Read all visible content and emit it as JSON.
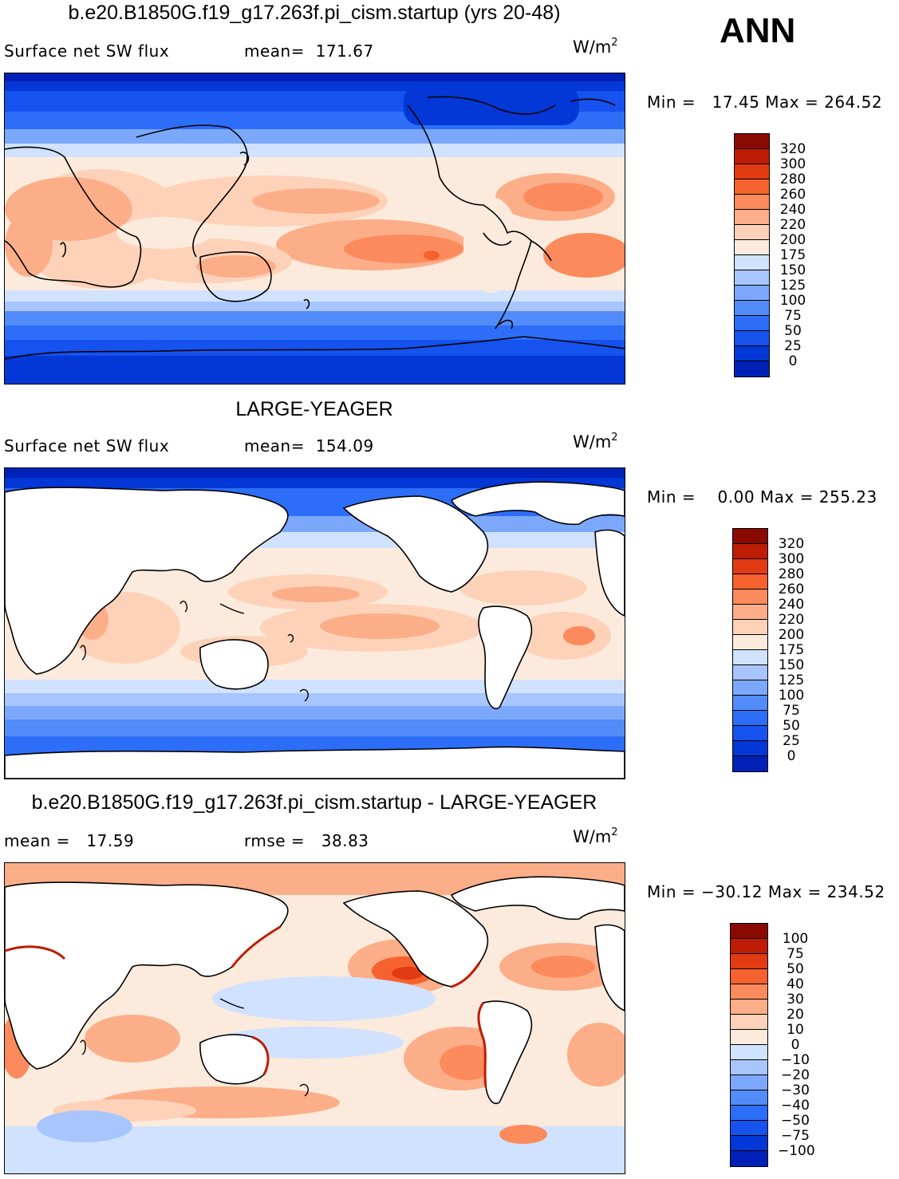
{
  "season": "ANN",
  "colors": {
    "land": "#ffffff",
    "coast": "#000000",
    "scale16": [
      "#000c7d",
      "#0021b8",
      "#0337d6",
      "#1552ee",
      "#2d6ef8",
      "#528cfa",
      "#7ca8fc",
      "#a8c6fd",
      "#d0e2fe",
      "#fcebdc",
      "#fdd2b9",
      "#fcae89",
      "#fb8a5c",
      "#f5622f",
      "#e23a12",
      "#be1c04",
      "#8a0a02"
    ]
  },
  "panels": [
    {
      "title": "b.e20.B1850G.f19_g17.263f.pi_cism.startup (yrs 20-48)",
      "sub_left": "Surface net SW flux",
      "sub_mid": "mean=  171.67",
      "unit": "W/m",
      "unit_exp": "2",
      "minmax": "Min =   17.45 Max = 264.52",
      "colorbar": [
        "320",
        "300",
        "280",
        "260",
        "240",
        "220",
        "200",
        "175",
        "150",
        "125",
        "100",
        "75",
        "50",
        "25",
        "0"
      ]
    },
    {
      "title": "LARGE-YEAGER",
      "sub_left": "Surface net SW flux",
      "sub_mid": "mean=  154.09",
      "unit": "W/m",
      "unit_exp": "2",
      "minmax": "Min =    0.00 Max = 255.23",
      "colorbar": [
        "320",
        "300",
        "280",
        "260",
        "240",
        "220",
        "200",
        "175",
        "150",
        "125",
        "100",
        "75",
        "50",
        "25",
        "0"
      ]
    },
    {
      "title": "b.e20.B1850G.f19_g17.263f.pi_cism.startup - LARGE-YEAGER",
      "sub_left": "mean =   17.59",
      "sub_mid": "rmse =   38.83",
      "unit": "W/m",
      "unit_exp": "2",
      "minmax": "Min = −30.12 Max = 234.52",
      "colorbar": [
        "100",
        "75",
        "50",
        "40",
        "30",
        "20",
        "10",
        "0",
        "−10",
        "−20",
        "−30",
        "−40",
        "−50",
        "−75",
        "−100"
      ]
    }
  ],
  "chart_data": [
    {
      "type": "heatmap",
      "title": "b.e20.B1850G.f19_g17.263f.pi_cism.startup (yrs 20-48)",
      "variable": "Surface net SW flux",
      "units": "W/m2",
      "mean": 171.67,
      "min": 17.45,
      "max": 264.52,
      "contour_levels": [
        0,
        25,
        50,
        75,
        100,
        125,
        150,
        175,
        200,
        220,
        240,
        260,
        280,
        300,
        320
      ]
    },
    {
      "type": "heatmap",
      "title": "LARGE-YEAGER",
      "variable": "Surface net SW flux",
      "units": "W/m2",
      "mean": 154.09,
      "min": 0.0,
      "max": 255.23,
      "contour_levels": [
        0,
        25,
        50,
        75,
        100,
        125,
        150,
        175,
        200,
        220,
        240,
        260,
        280,
        300,
        320
      ]
    },
    {
      "type": "heatmap",
      "title": "b.e20.B1850G.f19_g17.263f.pi_cism.startup - LARGE-YEAGER",
      "units": "W/m2",
      "mean": 17.59,
      "rmse": 38.83,
      "min": -30.12,
      "max": 234.52,
      "contour_levels": [
        -100,
        -75,
        -50,
        -40,
        -30,
        -20,
        -10,
        0,
        10,
        20,
        30,
        40,
        50,
        75,
        100
      ]
    }
  ]
}
